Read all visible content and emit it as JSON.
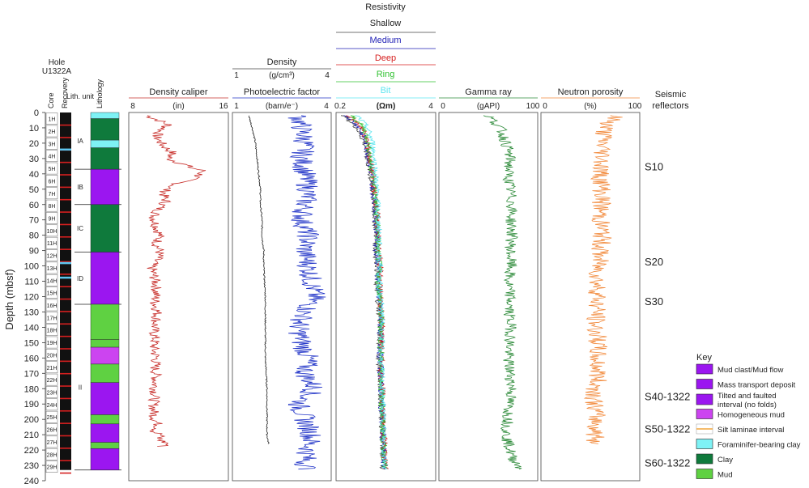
{
  "hole": {
    "line1": "Hole",
    "line2": "U1322A"
  },
  "columns": {
    "core": "Core",
    "recovery": "Recovery",
    "lith_unit": "Lith. unit",
    "lithology": "Lithology"
  },
  "depth_axis": {
    "label": "Depth (mbsf)",
    "ticks": [
      0,
      10,
      20,
      30,
      40,
      50,
      60,
      70,
      80,
      90,
      100,
      110,
      120,
      130,
      140,
      150,
      160,
      170,
      180,
      190,
      200,
      210,
      220,
      230,
      240
    ],
    "range": [
      0,
      240
    ]
  },
  "cores": [
    "1H",
    "2H",
    "3H",
    "4H",
    "5H",
    "6H",
    "7H",
    "8H",
    "9H",
    "10H",
    "11H",
    "12H",
    "13H",
    "14H",
    "15H",
    "16H",
    "17H",
    "18H",
    "19H",
    "20H",
    "21H",
    "22H",
    "23H",
    "24H",
    "25H",
    "26H",
    "27H",
    "28H",
    "29H"
  ],
  "lith_units": [
    {
      "label": "IA",
      "top": 0,
      "bottom": 37
    },
    {
      "label": "IB",
      "top": 37,
      "bottom": 60
    },
    {
      "label": "IC",
      "top": 60,
      "bottom": 91
    },
    {
      "label": "ID",
      "top": 91,
      "bottom": 125
    },
    {
      "label": "II",
      "top": 125,
      "bottom": 233
    }
  ],
  "lithology": [
    {
      "top": 0,
      "bottom": 4,
      "type": "foraminifer-clay",
      "color": "#7ef2f5"
    },
    {
      "top": 4,
      "bottom": 18,
      "type": "clay",
      "color": "#0f7a3c"
    },
    {
      "top": 18,
      "bottom": 23,
      "type": "foraminifer-clay",
      "color": "#7ef2f5"
    },
    {
      "top": 23,
      "bottom": 37,
      "type": "clay",
      "color": "#0f7a3c"
    },
    {
      "top": 37,
      "bottom": 60,
      "type": "mass-transport",
      "color": "#9b16f0"
    },
    {
      "top": 60,
      "bottom": 91,
      "type": "clay",
      "color": "#0f7a3c"
    },
    {
      "top": 91,
      "bottom": 125,
      "type": "mass-transport",
      "color": "#9b16f0"
    },
    {
      "top": 125,
      "bottom": 148,
      "type": "mud",
      "color": "#5fd142"
    },
    {
      "top": 148,
      "bottom": 153,
      "type": "mud",
      "color": "#5fd142"
    },
    {
      "top": 153,
      "bottom": 164,
      "type": "homogeneous-mud",
      "color": "#cc44f0"
    },
    {
      "top": 164,
      "bottom": 176,
      "type": "mud",
      "color": "#5fd142"
    },
    {
      "top": 176,
      "bottom": 197,
      "type": "mass-transport",
      "color": "#9b16f0"
    },
    {
      "top": 197,
      "bottom": 203,
      "type": "mud",
      "color": "#5fd142"
    },
    {
      "top": 203,
      "bottom": 215,
      "type": "mass-transport",
      "color": "#9b16f0"
    },
    {
      "top": 215,
      "bottom": 219,
      "type": "mud",
      "color": "#5fd142"
    },
    {
      "top": 219,
      "bottom": 233,
      "type": "mass-transport",
      "color": "#9b16f0"
    }
  ],
  "chart_data": [
    {
      "type": "line",
      "title": "Density caliper",
      "unit": "(in)",
      "xlim": [
        8,
        16
      ],
      "tick_labels": [
        "8",
        "16"
      ],
      "series": [
        {
          "name": "Density caliper",
          "color": "#c8302c",
          "x": [
            9.5,
            11.2,
            10.5,
            10.2,
            10.8,
            11.5,
            11.2,
            11.8,
            12.5,
            13,
            14,
            13.5,
            12,
            11,
            10.8,
            11,
            10.5,
            10,
            10.2,
            10.5,
            10.2,
            10.5,
            10.4,
            9.8,
            10,
            10.2,
            10.2,
            10.1,
            10.3,
            10.2,
            10,
            10.1,
            10,
            10.2,
            10.1,
            10.2,
            10.1,
            10.1,
            10,
            10,
            10.1,
            10.4,
            10.3,
            10,
            10.6,
            10.4,
            10.6,
            11.2,
            10.5
          ],
          "depth": [
            2,
            8,
            12,
            16,
            22,
            26,
            30,
            32,
            34,
            36,
            38,
            42,
            46,
            50,
            54,
            58,
            62,
            68,
            74,
            80,
            86,
            90,
            94,
            100,
            106,
            112,
            118,
            124,
            130,
            136,
            142,
            148,
            154,
            160,
            166,
            172,
            178,
            184,
            190,
            196,
            200,
            204,
            206,
            208,
            210,
            212,
            214,
            216,
            218
          ]
        }
      ]
    },
    {
      "type": "line",
      "title": "Density",
      "unit": "(g/cm³)",
      "xlim": [
        1,
        4
      ],
      "tick_labels": [
        "1",
        "4"
      ],
      "series": [
        {
          "name": "Density",
          "color": "#222222",
          "x": [
            1.5,
            1.6,
            1.7,
            1.75,
            1.8,
            1.85,
            1.85,
            1.9,
            1.9,
            1.95,
            1.95,
            2,
            2,
            2,
            2.05,
            2.05,
            2.05,
            2.1
          ],
          "depth": [
            2,
            10,
            20,
            30,
            40,
            50,
            60,
            70,
            80,
            90,
            100,
            120,
            140,
            160,
            180,
            200,
            210,
            216
          ]
        }
      ]
    },
    {
      "type": "line",
      "title": "Photoelectric factor",
      "unit": "(barn/e⁻)",
      "xlim": [
        1,
        4
      ],
      "tick_labels": [
        "1",
        "4"
      ],
      "series": [
        {
          "name": "Photoelectric factor",
          "color": "#2235c8",
          "x": [
            3,
            3.1,
            3.2,
            3.1,
            3.2,
            3.3,
            3.2,
            3.1,
            3.3,
            3.2,
            3.3,
            3.4,
            3.5,
            3.2,
            3,
            3.1,
            3.3,
            3.2,
            3.5,
            3,
            3.2,
            3.4,
            3.3,
            3.2,
            3.3
          ],
          "depth": [
            2,
            10,
            20,
            30,
            40,
            50,
            60,
            70,
            80,
            90,
            100,
            110,
            120,
            130,
            140,
            150,
            160,
            170,
            180,
            190,
            200,
            210,
            220,
            228,
            233
          ]
        }
      ]
    },
    {
      "type": "line",
      "title": "Resistivity",
      "unit": "(Ωm)",
      "xlim": [
        0.2,
        4
      ],
      "tick_labels": [
        "0.2",
        "4"
      ],
      "series": [
        {
          "name": "Shallow",
          "color": "#444444",
          "x": [
            0.5,
            1,
            1.3,
            1.4,
            1.5,
            1.6,
            1.65,
            1.7,
            1.75,
            1.7,
            1.8,
            1.75,
            1.8,
            1.9,
            1.85,
            1.9,
            1.95,
            2,
            1.95,
            2
          ],
          "depth": [
            2,
            10,
            20,
            30,
            40,
            50,
            60,
            70,
            80,
            90,
            100,
            110,
            120,
            140,
            160,
            180,
            200,
            215,
            225,
            233
          ]
        },
        {
          "name": "Medium",
          "color": "#1f1fb5",
          "x": [
            0.6,
            1.1,
            1.35,
            1.45,
            1.55,
            1.6,
            1.7,
            1.72,
            1.78,
            1.75,
            1.82,
            1.8,
            1.85,
            1.9,
            1.88,
            1.92,
            1.95,
            2,
            2,
            2.05
          ],
          "depth": [
            2,
            10,
            20,
            30,
            40,
            50,
            60,
            70,
            80,
            90,
            100,
            110,
            120,
            140,
            160,
            180,
            200,
            215,
            225,
            233
          ]
        },
        {
          "name": "Deep",
          "color": "#d62020",
          "x": [
            0.7,
            1.2,
            1.4,
            1.5,
            1.6,
            1.65,
            1.75,
            1.78,
            1.8,
            1.8,
            1.9,
            1.85,
            1.9,
            1.95,
            1.92,
            1.95,
            2,
            2.05,
            2.05,
            2.1
          ],
          "depth": [
            2,
            10,
            20,
            30,
            40,
            50,
            60,
            70,
            80,
            90,
            100,
            110,
            120,
            140,
            160,
            180,
            200,
            215,
            225,
            233
          ]
        },
        {
          "name": "Ring",
          "color": "#33c233",
          "x": [
            0.8,
            1.25,
            1.45,
            1.5,
            1.6,
            1.68,
            1.72,
            1.75,
            1.8,
            1.78,
            1.85,
            1.82,
            1.88,
            1.92,
            1.9,
            1.93,
            1.97,
            2,
            2.05,
            2.05
          ],
          "depth": [
            2,
            10,
            20,
            30,
            40,
            50,
            60,
            70,
            80,
            90,
            100,
            110,
            120,
            140,
            160,
            180,
            200,
            215,
            225,
            233
          ]
        },
        {
          "name": "Bit",
          "color": "#5ee6f0",
          "x": [
            1,
            1.4,
            1.6,
            1.65,
            1.7,
            1.75,
            1.78,
            1.8,
            1.85,
            1.82,
            1.88,
            1.85,
            1.9,
            1.95,
            1.92,
            1.95,
            2,
            2.02,
            2.05,
            2.08
          ],
          "depth": [
            2,
            10,
            20,
            30,
            40,
            50,
            60,
            70,
            80,
            90,
            100,
            110,
            120,
            140,
            160,
            180,
            200,
            215,
            225,
            233
          ]
        }
      ]
    },
    {
      "type": "line",
      "title": "Gamma ray",
      "unit": "(gAPI)",
      "xlim": [
        0,
        100
      ],
      "tick_labels": [
        "0",
        "100"
      ],
      "series": [
        {
          "name": "Gamma ray",
          "color": "#2e8b3a",
          "x": [
            50,
            62,
            68,
            72,
            70,
            72,
            74,
            73,
            74,
            72,
            73,
            70,
            72,
            71,
            73,
            72,
            70,
            72,
            74,
            71,
            70,
            68,
            72,
            74,
            78,
            82,
            84
          ],
          "depth": [
            2,
            10,
            20,
            30,
            40,
            50,
            60,
            70,
            80,
            90,
            100,
            110,
            120,
            130,
            140,
            150,
            160,
            170,
            180,
            190,
            200,
            210,
            220,
            225,
            228,
            231,
            233
          ]
        }
      ]
    },
    {
      "type": "line",
      "title": "Neutron porosity",
      "unit": "(%)",
      "xlim": [
        0,
        100
      ],
      "tick_labels": [
        "0",
        "100"
      ],
      "series": [
        {
          "name": "Neutron porosity",
          "color": "#f28a3c",
          "x": [
            75,
            65,
            62,
            63,
            60,
            62,
            61,
            60,
            62,
            60,
            58,
            57,
            58,
            56,
            55,
            58,
            56,
            58,
            55,
            54,
            56,
            55,
            56
          ],
          "depth": [
            2,
            10,
            20,
            30,
            40,
            50,
            60,
            70,
            80,
            90,
            100,
            110,
            120,
            130,
            140,
            150,
            160,
            170,
            180,
            190,
            200,
            210,
            216
          ]
        }
      ]
    }
  ],
  "density_header": {
    "title": "Density",
    "unit": "(g/cm³)",
    "ticks": [
      "1",
      "4"
    ]
  },
  "resistivity_header": {
    "title": "Resistivity",
    "curves": [
      "Shallow",
      "Medium",
      "Deep",
      "Ring",
      "Bit"
    ]
  },
  "seismic": {
    "title_line1": "Seismic",
    "title_line2": "reflectors",
    "reflectors": [
      {
        "label": "S10",
        "depth": 35
      },
      {
        "label": "S20",
        "depth": 97
      },
      {
        "label": "S30",
        "depth": 123
      },
      {
        "label": "S40-1322",
        "depth": 185
      },
      {
        "label": "S50-1322",
        "depth": 206
      },
      {
        "label": "S60-1322",
        "depth": 228
      }
    ]
  },
  "key": {
    "title": "Key",
    "items": [
      {
        "label": "Mud clast/Mud flow",
        "color": "#9b16f0"
      },
      {
        "label": "Mass transport deposit",
        "color": "#9b16f0"
      },
      {
        "label": "Tilted and faulted interval (no folds)",
        "color": "#9b16f0"
      },
      {
        "label": "Homogeneous mud",
        "color": "#cc44f0"
      },
      {
        "label": "Silt laminae interval",
        "color": "#f2a63c"
      },
      {
        "label": "Foraminifer-bearing clay",
        "color": "#7ef2f5"
      },
      {
        "label": "Clay",
        "color": "#0f7a3c"
      },
      {
        "label": "Mud",
        "color": "#5fd142"
      }
    ]
  }
}
